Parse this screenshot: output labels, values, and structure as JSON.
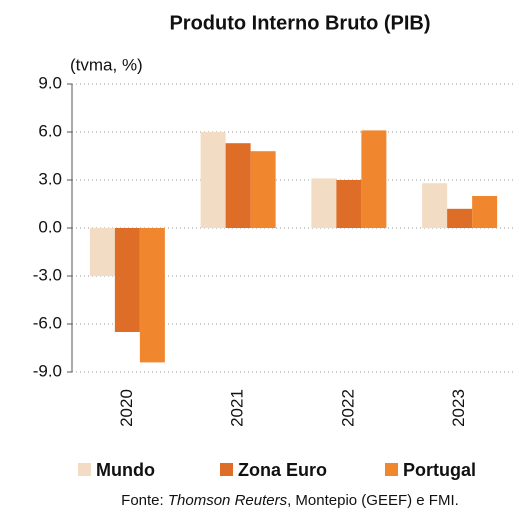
{
  "chart_data": {
    "type": "bar",
    "title": "Produto Interno Bruto (PIB)",
    "y_label": "(tvma, %)",
    "categories": [
      "2020",
      "2021",
      "2022",
      "2023"
    ],
    "series": [
      {
        "name": "Mundo",
        "color": "#f2dcc3",
        "values": [
          -3.0,
          6.0,
          3.1,
          2.8
        ]
      },
      {
        "name": "Zona Euro",
        "color": "#de6d28",
        "values": [
          -6.5,
          5.3,
          3.0,
          1.2
        ]
      },
      {
        "name": "Portugal",
        "color": "#f0872f",
        "values": [
          -8.4,
          4.8,
          6.1,
          2.0
        ]
      }
    ],
    "ylim": [
      -9,
      9
    ],
    "yticks": [
      {
        "value": -9,
        "label": "-9.0"
      },
      {
        "value": -6,
        "label": "-6.0"
      },
      {
        "value": -3,
        "label": "-3.0"
      },
      {
        "value": 0,
        "label": "0.0"
      },
      {
        "value": 3,
        "label": "3.0"
      },
      {
        "value": 6,
        "label": "6.0"
      },
      {
        "value": 9,
        "label": "9.0"
      }
    ],
    "grid": true,
    "source": [
      "Fonte: ",
      "Thomson Reuters",
      ", Montepio (GEEF) e FMI."
    ]
  }
}
